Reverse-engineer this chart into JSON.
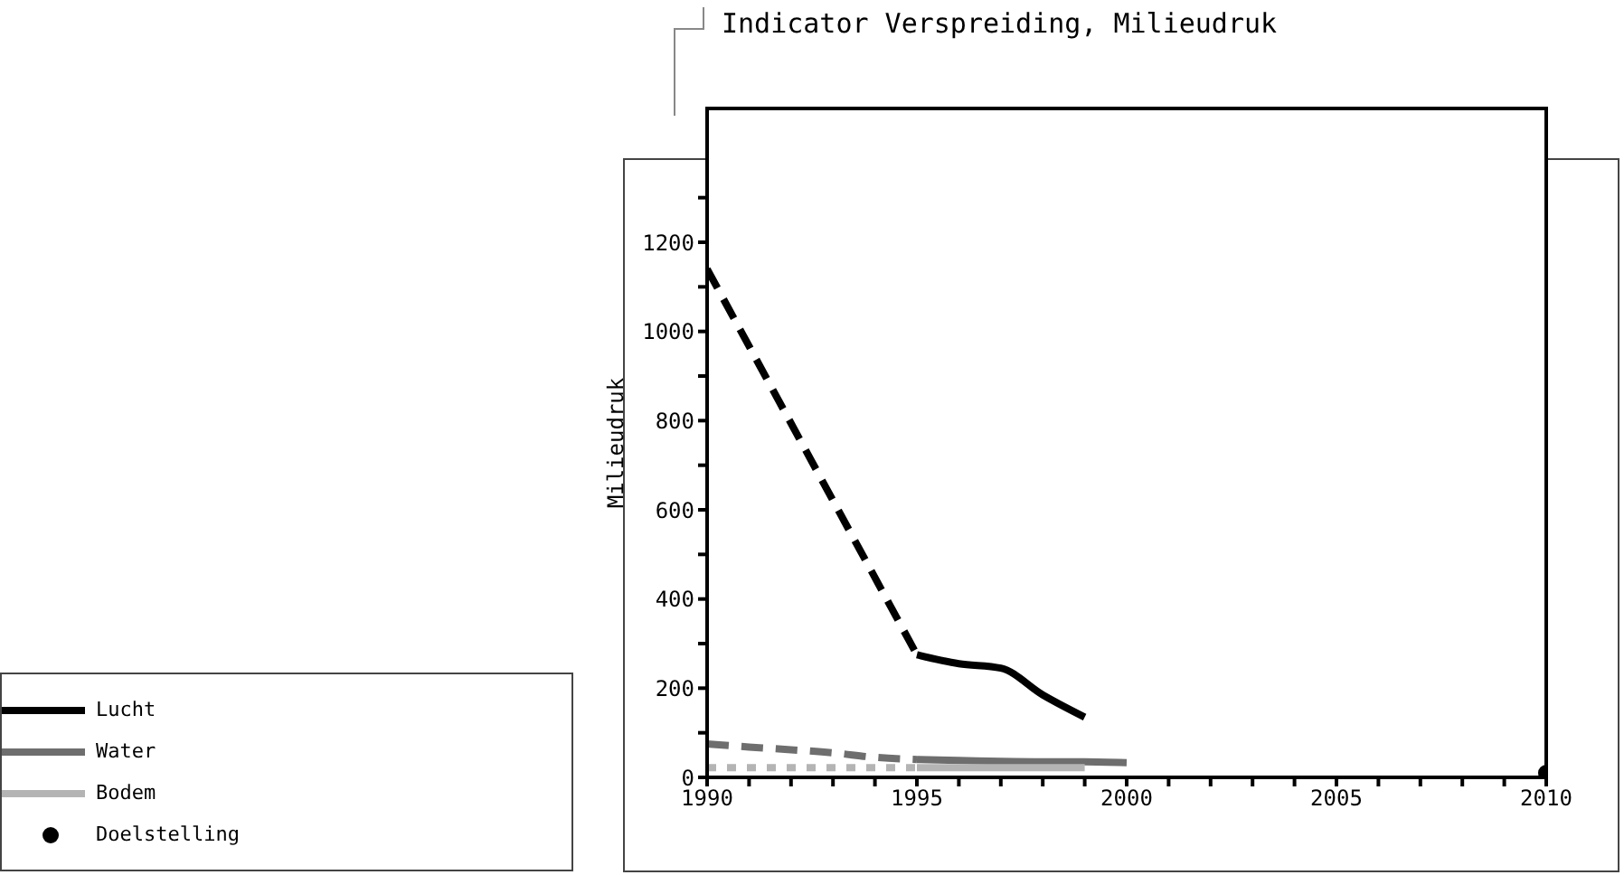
{
  "chart_data": {
    "type": "line",
    "title": "Indicator Verspreiding, Milieudruk",
    "ylabel": "Milieudruk",
    "xlim": [
      1990,
      2010
    ],
    "xticks": [
      1990,
      {
        "value": 1991,
        "label": null
      },
      {
        "value": 1992,
        "label": null
      },
      {
        "value": 1993,
        "label": null
      },
      {
        "value": 1994,
        "label": null
      },
      1995,
      {
        "value": 1996,
        "label": null
      },
      {
        "value": 1997,
        "label": null
      },
      {
        "value": 1998,
        "label": null
      },
      {
        "value": 1999,
        "label": null
      },
      2000,
      {
        "value": 2001,
        "label": null
      },
      {
        "value": 2002,
        "label": null
      },
      {
        "value": 2003,
        "label": null
      },
      {
        "value": 2004,
        "label": null
      },
      2005,
      {
        "value": 2006,
        "label": null
      },
      {
        "value": 2007,
        "label": null
      },
      {
        "value": 2008,
        "label": null
      },
      {
        "value": 2009,
        "label": null
      },
      2010
    ],
    "ylim": [
      0,
      1500
    ],
    "yticks": [
      0,
      {
        "value": 100,
        "label": null
      },
      200,
      {
        "value": 300,
        "label": null
      },
      400,
      {
        "value": 500,
        "label": null
      },
      600,
      {
        "value": 700,
        "label": null
      },
      800,
      {
        "value": 900,
        "label": null
      },
      1000,
      {
        "value": 1100,
        "label": null
      },
      1200,
      {
        "value": 1300,
        "label": null
      }
    ],
    "legend": "bottom left",
    "series": [
      {
        "color": "#000000",
        "line_style": "dashed",
        "x": [
          1990,
          1995
        ],
        "values": [
          1140,
          275
        ]
      },
      {
        "name": "Lucht",
        "color": "#000000",
        "line_style": "solid",
        "x": [
          1995,
          1996,
          1997,
          1998,
          1999
        ],
        "values": [
          275,
          255,
          245,
          185,
          135
        ]
      },
      {
        "color": "#6e6e6e",
        "line_style": "dashed",
        "x": [
          1990,
          1991,
          1992,
          1993,
          1994,
          1995
        ],
        "values": [
          75,
          68,
          62,
          55,
          45,
          40
        ]
      },
      {
        "name": "Water",
        "color": "#6e6e6e",
        "line_style": "solid",
        "x": [
          1995,
          1996,
          1997,
          1998,
          1999,
          2000
        ],
        "values": [
          40,
          38,
          36,
          35,
          35,
          33
        ]
      },
      {
        "color": "#b4b4b4",
        "line_style": "dotted",
        "x": [
          1990,
          1995
        ],
        "values": [
          22,
          22
        ]
      },
      {
        "name": "Bodem",
        "color": "#b4b4b4",
        "line_style": "solid",
        "x": [
          1995,
          1996,
          1997,
          1998,
          1999
        ],
        "values": [
          22,
          22,
          22,
          22,
          22
        ]
      },
      {
        "name": "Doelstelling",
        "type": "scatter",
        "marker": "circle",
        "color": "#000000",
        "x": [
          2010
        ],
        "values": [
          10
        ]
      }
    ]
  }
}
